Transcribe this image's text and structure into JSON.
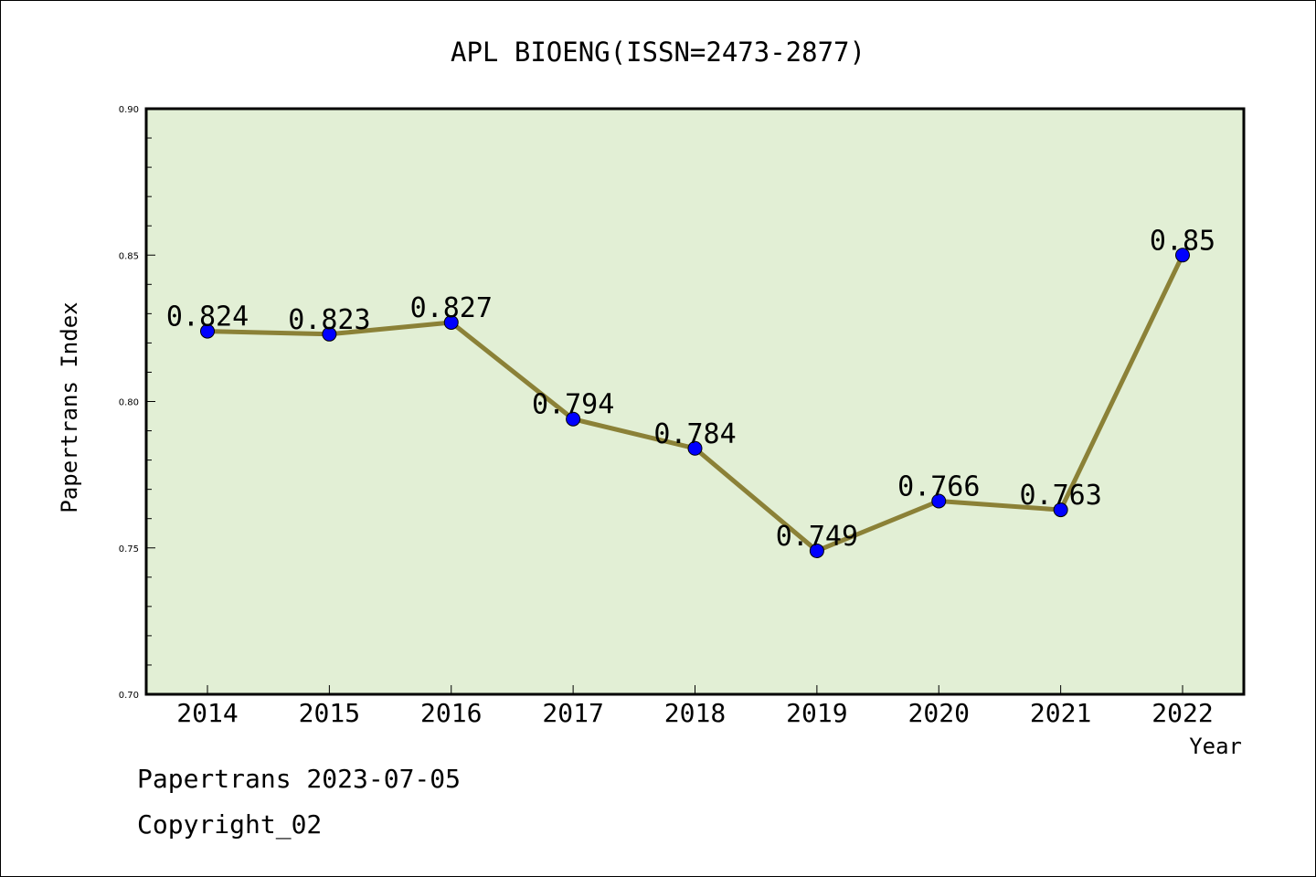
{
  "chart_data": {
    "type": "line",
    "title": "APL BIOENG(ISSN=2473-2877)",
    "xlabel": "Year",
    "ylabel": "Papertrans Index",
    "categories": [
      "2014",
      "2015",
      "2016",
      "2017",
      "2018",
      "2019",
      "2020",
      "2021",
      "2022"
    ],
    "values": [
      0.824,
      0.823,
      0.827,
      0.794,
      0.784,
      0.749,
      0.766,
      0.763,
      0.85
    ],
    "data_labels": [
      "0.824",
      "0.823",
      "0.827",
      "0.794",
      "0.784",
      "0.749",
      "0.766",
      "0.763",
      "0.85"
    ],
    "ylim": [
      0.7,
      0.9
    ],
    "yticks": [
      "0.70",
      "0.75",
      "0.80",
      "0.85",
      "0.90"
    ],
    "grid": false,
    "colors": {
      "plot_background": "#e2efd5",
      "line": "#8b8137",
      "marker": "#0000ff"
    }
  },
  "footer": {
    "line1": "Papertrans 2023-07-05",
    "line2": "Copyright_02"
  }
}
